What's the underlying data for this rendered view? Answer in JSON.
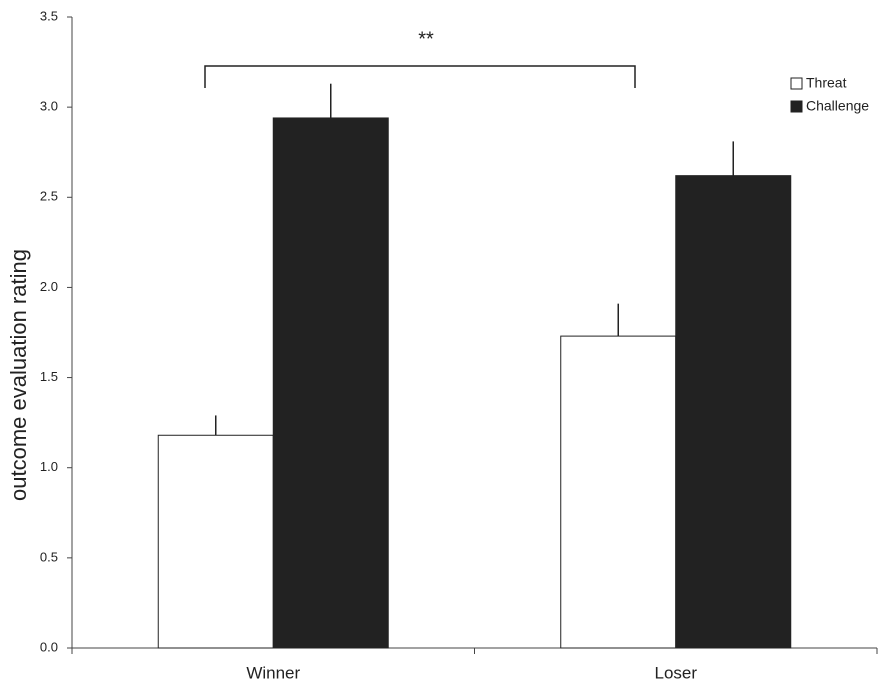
{
  "chart_data": {
    "type": "bar",
    "y_label": "outcome evaluation rating",
    "categories": [
      "Winner",
      "Loser"
    ],
    "series": [
      {
        "name": "Threat",
        "color": "#ffffff",
        "values": [
          1.18,
          1.73
        ],
        "errors": [
          0.11,
          0.18
        ]
      },
      {
        "name": "Challenge",
        "color": "#222222",
        "values": [
          2.94,
          2.62
        ],
        "errors": [
          0.19,
          0.19
        ]
      }
    ],
    "ylim": [
      0,
      3.5
    ],
    "yticks": [
      {
        "value": 0,
        "label": "0.0"
      },
      0.5,
      {
        "value": 1,
        "label": "1.0"
      },
      1.5,
      {
        "value": 2,
        "label": "2.0"
      },
      2.5,
      {
        "value": 3,
        "label": "3.0"
      },
      3.5
    ],
    "annotation": "**",
    "legend": "top-right"
  }
}
